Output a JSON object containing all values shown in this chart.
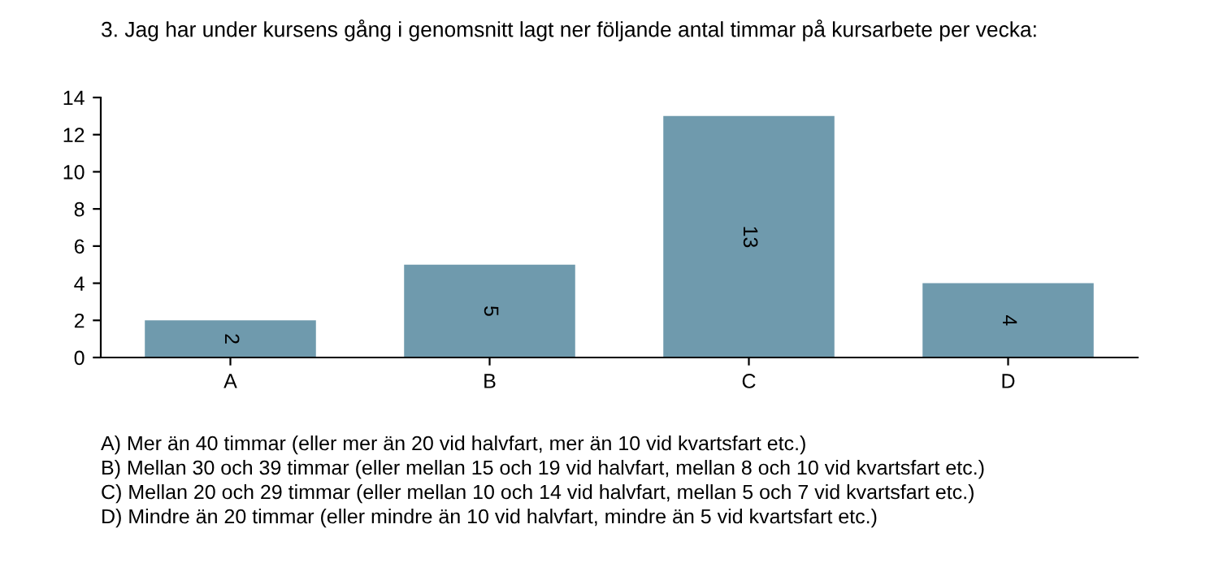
{
  "chart_data": {
    "type": "bar",
    "title": "3. Jag har under kursens gång i genomsnitt lagt ner följande antal timmar på kursarbete per vecka:",
    "categories": [
      "A",
      "B",
      "C",
      "D"
    ],
    "values": [
      2,
      5,
      13,
      4
    ],
    "color": "#6f9aad",
    "ylim": [
      0,
      14
    ],
    "yticks": [
      0,
      2,
      4,
      6,
      8,
      10,
      12,
      14
    ],
    "grid": false,
    "data_labels": true,
    "annotations": [
      "A) Mer än 40 timmar (eller mer än 20 vid halvfart, mer än 10 vid kvartsfart etc.)",
      "B) Mellan 30 och 39 timmar (eller mellan 15 och 19 vid halvfart, mellan 8 och 10 vid kvartsfart etc.)",
      "C) Mellan 20 och 29 timmar (eller mellan 10 och 14 vid halvfart, mellan 5 och 7 vid kvartsfart etc.)",
      "D) Mindre än 20 timmar (eller mindre än 10 vid halvfart, mindre än 5 vid kvartsfart etc.)"
    ]
  }
}
